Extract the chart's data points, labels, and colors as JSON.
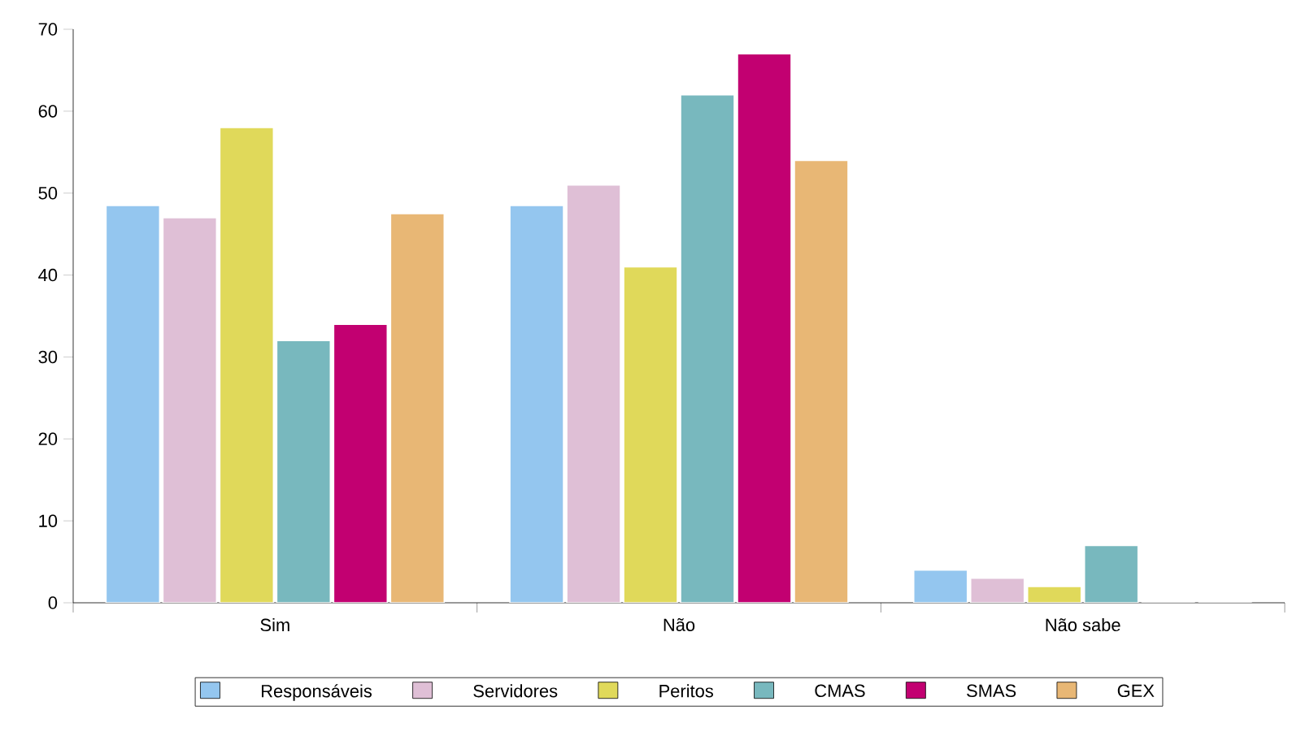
{
  "chart_data": {
    "type": "bar",
    "categories": [
      "Sim",
      "Não",
      "Não sabe"
    ],
    "series": [
      {
        "name": "Responsáveis",
        "color": "#94c6ef",
        "values": [
          48.5,
          48.5,
          4
        ]
      },
      {
        "name": "Servidores",
        "color": "#dfbfd6",
        "values": [
          47,
          51,
          3
        ]
      },
      {
        "name": "Peritos",
        "color": "#e0d95a",
        "values": [
          58,
          41,
          2
        ]
      },
      {
        "name": "CMAS",
        "color": "#78b8be",
        "values": [
          32,
          62,
          7
        ]
      },
      {
        "name": "SMAS",
        "color": "#c20071",
        "values": [
          34,
          67,
          0
        ]
      },
      {
        "name": "GEX",
        "color": "#e8b775",
        "values": [
          47.5,
          54,
          0
        ]
      }
    ],
    "ylim": [
      0,
      70
    ],
    "yticks": [
      0,
      10,
      20,
      30,
      40,
      50,
      60,
      70
    ],
    "grid": false,
    "legend": "bottom"
  }
}
